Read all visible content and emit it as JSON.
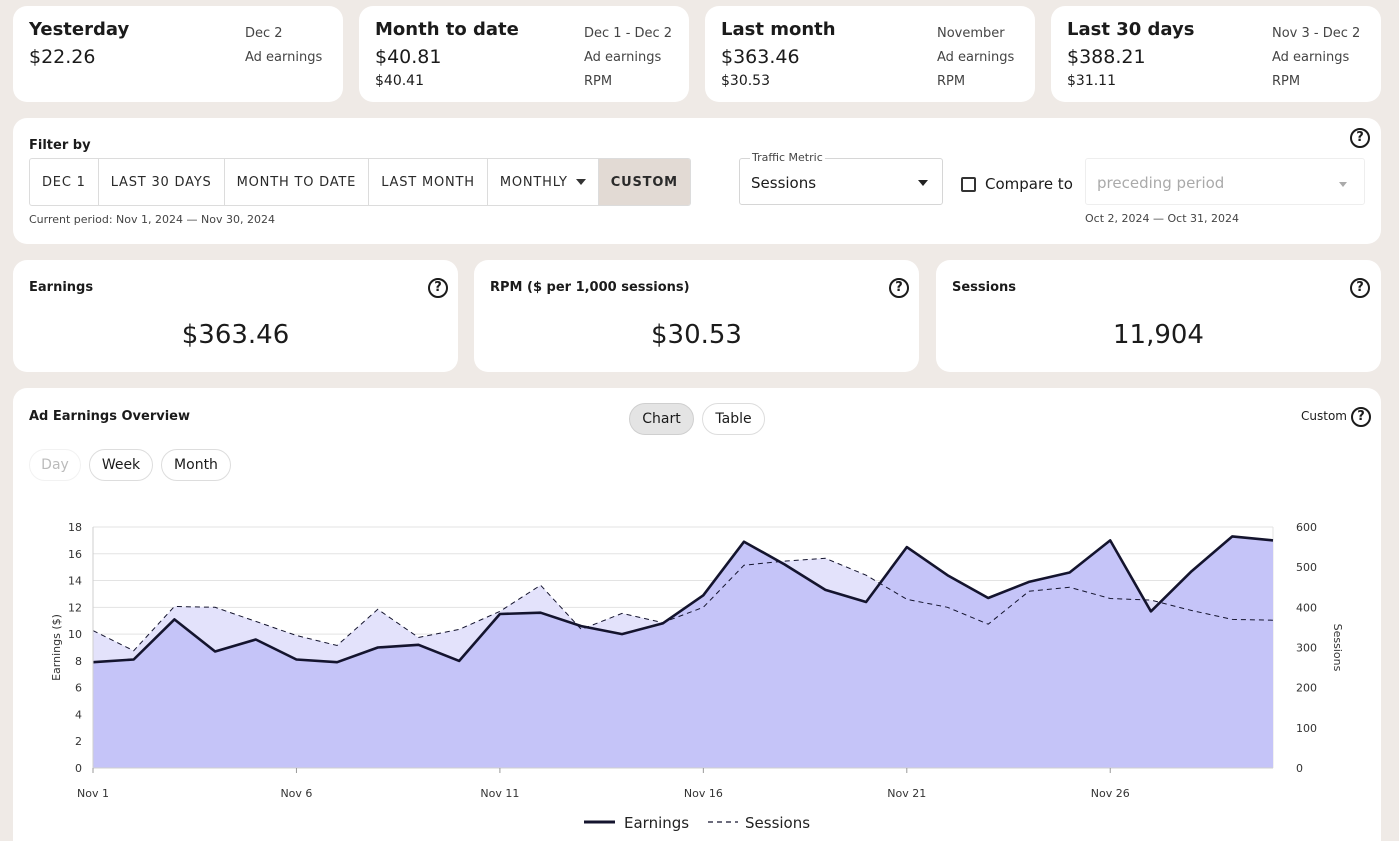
{
  "summary": [
    {
      "title": "Yesterday",
      "value": "$22.26",
      "date": "Dec 2",
      "label1": "Ad earnings",
      "sub": "",
      "label2": ""
    },
    {
      "title": "Month to date",
      "value": "$40.81",
      "date": "Dec 1 - Dec 2",
      "label1": "Ad earnings",
      "sub": "$40.41",
      "label2": "RPM"
    },
    {
      "title": "Last month",
      "value": "$363.46",
      "date": "November",
      "label1": "Ad earnings",
      "sub": "$30.53",
      "label2": "RPM"
    },
    {
      "title": "Last 30 days",
      "value": "$388.21",
      "date": "Nov 3 - Dec 2",
      "label1": "Ad earnings",
      "sub": "$31.11",
      "label2": "RPM"
    }
  ],
  "filter": {
    "label": "Filter by",
    "buttons": [
      "DEC 1",
      "LAST 30 DAYS",
      "MONTH TO DATE",
      "LAST MONTH",
      "MONTHLY",
      "CUSTOM"
    ],
    "active": "CUSTOM",
    "current_period": "Current period: Nov 1, 2024 — Nov 30, 2024",
    "traffic_metric_label": "Traffic Metric",
    "traffic_metric_value": "Sessions",
    "compare_label": "Compare to",
    "compare_placeholder": "preceding period",
    "compare_period": "Oct 2, 2024 — Oct 31, 2024",
    "help": "?"
  },
  "metrics": [
    {
      "title": "Earnings",
      "value": "$363.46"
    },
    {
      "title": "RPM ($ per 1,000 sessions)",
      "value": "$30.53"
    },
    {
      "title": "Sessions",
      "value": "11,904"
    }
  ],
  "overview": {
    "title": "Ad Earnings Overview",
    "view_tabs": [
      "Chart",
      "Table"
    ],
    "active_view": "Chart",
    "granularity": [
      "Day",
      "Week",
      "Month"
    ],
    "disabled_granularity": "Day",
    "range_label": "Custom"
  },
  "chart_data": {
    "type": "line",
    "x": [
      "Nov 1",
      "Nov 2",
      "Nov 3",
      "Nov 4",
      "Nov 5",
      "Nov 6",
      "Nov 7",
      "Nov 8",
      "Nov 9",
      "Nov 10",
      "Nov 11",
      "Nov 12",
      "Nov 13",
      "Nov 14",
      "Nov 15",
      "Nov 16",
      "Nov 17",
      "Nov 18",
      "Nov 19",
      "Nov 20",
      "Nov 21",
      "Nov 22",
      "Nov 23",
      "Nov 24",
      "Nov 25",
      "Nov 26",
      "Nov 27",
      "Nov 28",
      "Nov 29",
      "Nov 30"
    ],
    "x_tick_labels": [
      "Nov 1",
      "Nov 6",
      "Nov 11",
      "Nov 16",
      "Nov 21",
      "Nov 26"
    ],
    "series": [
      {
        "name": "Earnings",
        "axis": "left",
        "style": "solid",
        "color": "#14142e",
        "values": [
          7.9,
          8.1,
          11.1,
          8.7,
          9.6,
          8.1,
          7.9,
          9.0,
          9.2,
          8.0,
          11.5,
          11.6,
          10.6,
          10.0,
          10.8,
          12.9,
          16.9,
          15.2,
          13.3,
          12.4,
          16.5,
          14.4,
          12.7,
          13.9,
          14.6,
          17.0,
          11.7,
          14.7,
          17.3,
          17.0
        ]
      },
      {
        "name": "Sessions",
        "axis": "right",
        "style": "dashed",
        "color": "#14142e",
        "values": [
          342,
          292,
          402,
          400,
          365,
          330,
          305,
          395,
          325,
          345,
          390,
          455,
          345,
          385,
          362,
          400,
          505,
          515,
          522,
          480,
          420,
          400,
          358,
          440,
          450,
          422,
          418,
          392,
          370,
          368
        ]
      }
    ],
    "ylabel": "Earnings ($)",
    "ylim": [
      0,
      18
    ],
    "yticks": [
      0,
      2,
      4,
      6,
      8,
      10,
      12,
      14,
      16,
      18
    ],
    "y2label": "Sessions",
    "y2lim": [
      0,
      600
    ],
    "y2ticks": [
      0,
      100,
      200,
      300,
      400,
      500,
      600
    ],
    "grid": true,
    "legend": "bottom-center",
    "earnings_fill": "#c5c4f8",
    "sessions_fill": "#e3e2fb"
  }
}
